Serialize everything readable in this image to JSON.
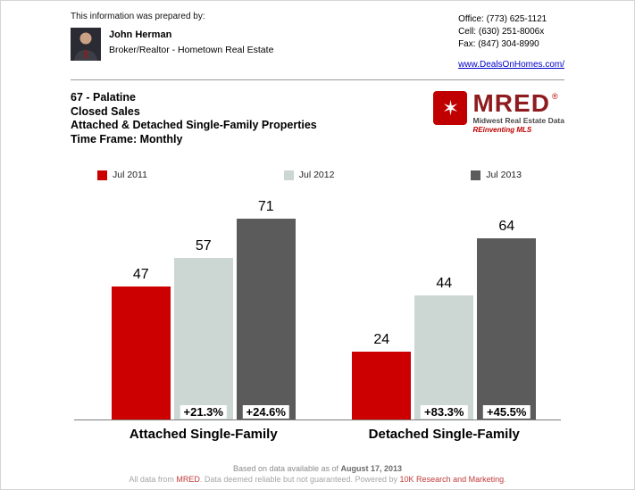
{
  "header": {
    "prepared_by": "This information was prepared by:",
    "agent": {
      "name": "John Herman",
      "title": "Broker/Realtor - Hometown Real Estate"
    },
    "contact": {
      "office": "Office: (773) 625-1121",
      "cell": "Cell: (630) 251-8006x",
      "fax": "Fax: (847) 304-8990",
      "website": "www.DealsOnHomes.com/"
    }
  },
  "report": {
    "area": "67 - Palatine",
    "metric": "Closed Sales",
    "property_types": "Attached & Detached Single-Family Properties",
    "time_frame": "Time Frame: Monthly"
  },
  "logo": {
    "icon_glyph": "✶",
    "name": "MRED",
    "registered": "®",
    "tagline1": "Midwest Real Estate Data",
    "tagline2": "REinventing MLS"
  },
  "chart_data": {
    "type": "bar",
    "title": "Closed Sales - 67 Palatine - Monthly",
    "categories": [
      "Attached Single-Family",
      "Detached Single-Family"
    ],
    "series": [
      {
        "name": "Jul 2011",
        "color": "#cc0000",
        "values": [
          47,
          24
        ]
      },
      {
        "name": "Jul 2012",
        "color": "#ccd6d2",
        "values": [
          57,
          44
        ]
      },
      {
        "name": "Jul 2013",
        "color": "#5b5b5b",
        "values": [
          71,
          64
        ]
      }
    ],
    "pct_change": [
      [
        "",
        "+21.3%",
        "+24.6%"
      ],
      [
        "",
        "+83.3%",
        "+45.5%"
      ]
    ],
    "ylim": [
      0,
      80
    ],
    "grid": false,
    "legend_position": "top"
  },
  "footer": {
    "line1_prefix": "Based on data available as of ",
    "line1_date": "August 17, 2013",
    "line2_seg1": "All data from ",
    "line2_mred": "MRED",
    "line2_seg2": ". Data deemed reliable but not guaranteed. Powered by ",
    "line2_10k": "10K Research and Marketing",
    "line2_seg3": "."
  }
}
